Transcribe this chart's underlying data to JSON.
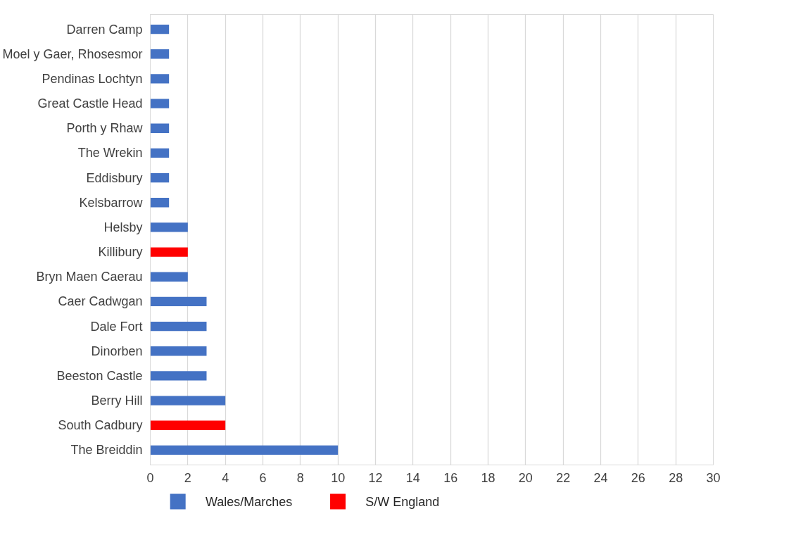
{
  "chart_data": {
    "type": "bar",
    "orientation": "horizontal",
    "categories": [
      "Darren Camp",
      "Moel y Gaer, Rhosesmor",
      "Pendinas Lochtyn",
      "Great Castle Head",
      "Porth y Rhaw",
      "The Wrekin",
      "Eddisbury",
      "Kelsbarrow",
      "Helsby",
      "Killibury",
      "Bryn Maen Caerau",
      "Caer Cadwgan",
      "Dale Fort",
      "Dinorben",
      "Beeston Castle",
      "Berry Hill",
      "South Cadbury",
      "The Breiddin"
    ],
    "series": [
      {
        "name": "Wales/Marches",
        "color": "#4472c4",
        "values": [
          1,
          1,
          1,
          1,
          1,
          1,
          1,
          1,
          2,
          null,
          2,
          3,
          3,
          3,
          3,
          4,
          null,
          10
        ]
      },
      {
        "name": "S/W England",
        "color": "#ff0000",
        "values": [
          null,
          null,
          null,
          null,
          null,
          null,
          null,
          null,
          null,
          2,
          null,
          null,
          null,
          null,
          null,
          null,
          4,
          null
        ]
      }
    ],
    "xlim": [
      0,
      30
    ],
    "xticks": [
      0,
      2,
      4,
      6,
      8,
      10,
      12,
      14,
      16,
      18,
      20,
      22,
      24,
      26,
      28,
      30
    ],
    "grid": "x",
    "legend": "bottom"
  }
}
